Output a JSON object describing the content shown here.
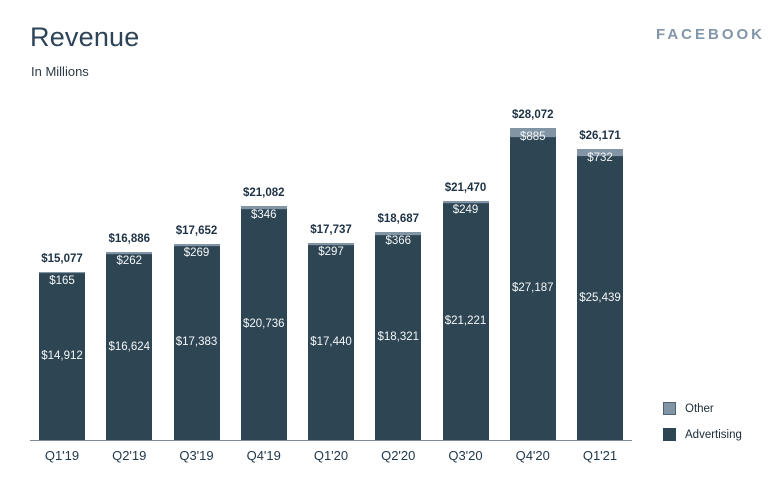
{
  "header": {
    "title": "Revenue",
    "subtitle": "In Millions",
    "brand": "FACEBOOK"
  },
  "colors": {
    "advertising": "#2e4553",
    "other": "#8195a4",
    "other_border": "#4d6272",
    "total_label": "#1d3245",
    "axis": "#7f8a93"
  },
  "legend": [
    {
      "label": "Other",
      "color": "#8195a4"
    },
    {
      "label": "Advertising",
      "color": "#2e4553"
    }
  ],
  "chart_data": {
    "type": "bar",
    "stacked": true,
    "title": "Revenue",
    "subtitle": "In Millions",
    "unit": "USD millions",
    "legend_position": "bottom-right",
    "grid": false,
    "categories": [
      "Q1'19",
      "Q2'19",
      "Q3'19",
      "Q4'19",
      "Q1'20",
      "Q2'20",
      "Q3'20",
      "Q4'20",
      "Q1'21"
    ],
    "series": [
      {
        "name": "Advertising",
        "color": "#2e4553",
        "values": [
          14912,
          16624,
          17383,
          20736,
          17440,
          18321,
          21221,
          27187,
          25439
        ]
      },
      {
        "name": "Other",
        "color": "#8195a4",
        "values": [
          165,
          262,
          269,
          346,
          297,
          366,
          249,
          885,
          732
        ]
      }
    ],
    "totals": [
      15077,
      16886,
      17652,
      21082,
      17737,
      18687,
      21470,
      28072,
      26171
    ],
    "total_labels": [
      "$15,077",
      "$16,886",
      "$17,652",
      "$21,082",
      "$17,737",
      "$18,687",
      "$21,470",
      "$28,072",
      "$26,171"
    ],
    "advertising_labels": [
      "$14,912",
      "$16,624",
      "$17,383",
      "$20,736",
      "$17,440",
      "$18,321",
      "$21,221",
      "$27,187",
      "$25,439"
    ],
    "other_labels": [
      "$165",
      "$262",
      "$269",
      "$346",
      "$297",
      "$366",
      "$249",
      "$885",
      "$732"
    ],
    "ylim": [
      0,
      28072
    ]
  }
}
